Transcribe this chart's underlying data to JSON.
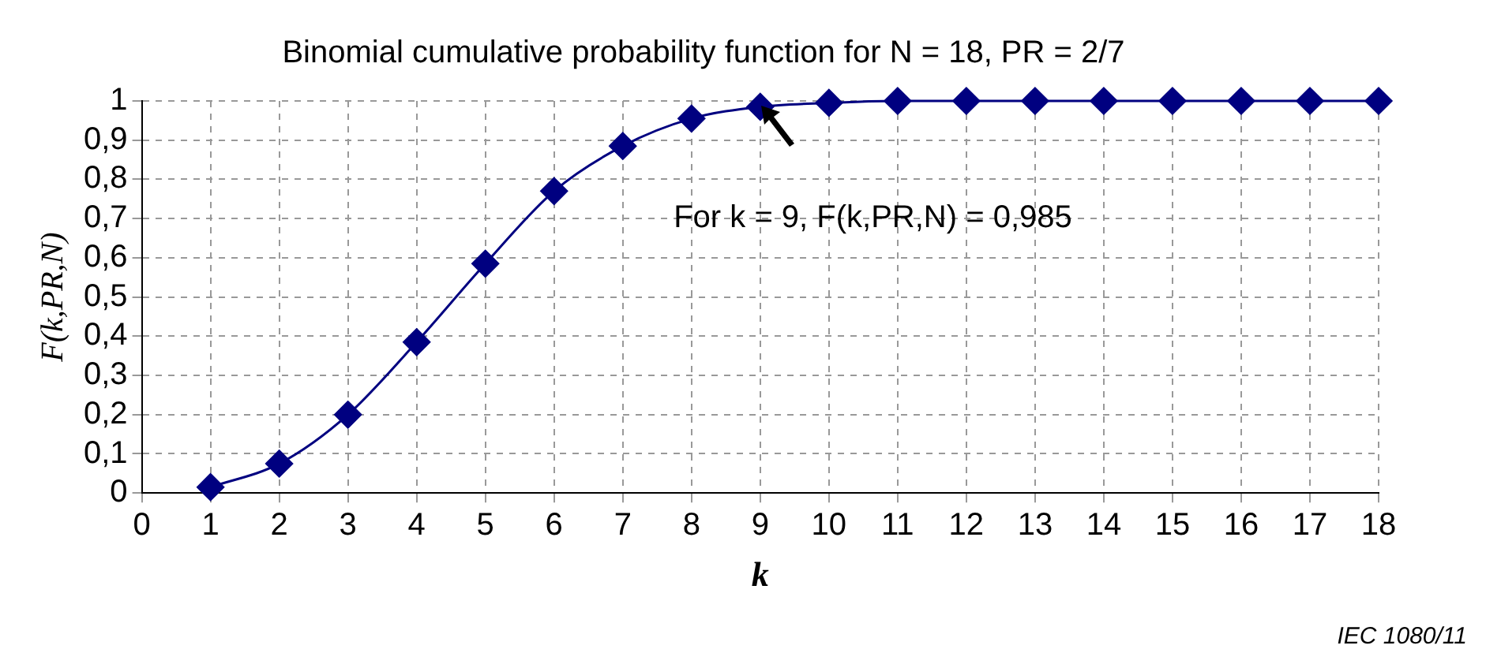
{
  "chart_data": {
    "type": "line",
    "title": "Binomial cumulative probability function for N = 18, PR = 2/7",
    "xlabel": "k",
    "ylabel": "F(k,PR,N)",
    "x": [
      1,
      2,
      3,
      4,
      5,
      6,
      7,
      8,
      9,
      10,
      11,
      12,
      13,
      14,
      15,
      16,
      17,
      18
    ],
    "series": [
      {
        "color": "#000080",
        "values": [
          0.015,
          0.075,
          0.2,
          0.385,
          0.585,
          0.77,
          0.885,
          0.955,
          0.985,
          0.995,
          1,
          1,
          1,
          1,
          1,
          1,
          1,
          1
        ]
      }
    ],
    "xlim": [
      0,
      18
    ],
    "xticks": [
      0,
      1,
      2,
      3,
      4,
      5,
      6,
      7,
      8,
      9,
      10,
      11,
      12,
      13,
      14,
      15,
      16,
      17,
      18
    ],
    "ylim": [
      0,
      1
    ],
    "yticks": [
      0,
      {
        "value": 0.1,
        "label": "0,1"
      },
      {
        "value": 0.2,
        "label": "0,2"
      },
      {
        "value": 0.3,
        "label": "0,3"
      },
      {
        "value": 0.4,
        "label": "0,4"
      },
      {
        "value": 0.5,
        "label": "0,5"
      },
      {
        "value": 0.6,
        "label": "0,6"
      },
      {
        "value": 0.7,
        "label": "0,7"
      },
      {
        "value": 0.8,
        "label": "0,8"
      },
      {
        "value": 0.9,
        "label": "0,9"
      },
      1
    ],
    "grid": true,
    "legend": false,
    "marker": "diamond",
    "line_style": "solid",
    "annotations": [
      "For k = 9, F(k,PR,N) = 0,985",
      "IEC 1080/11"
    ]
  }
}
